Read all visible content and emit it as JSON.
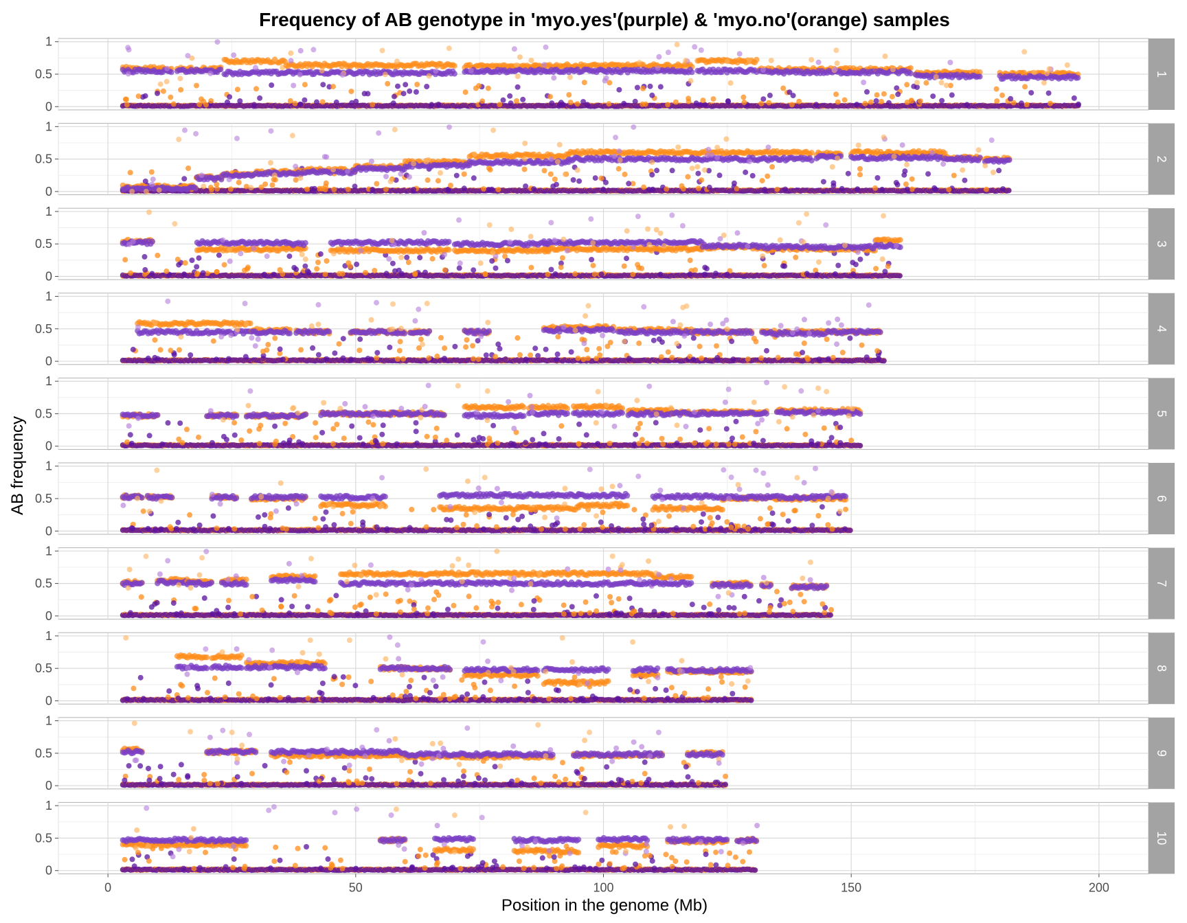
{
  "chart_data": {
    "type": "scatter",
    "title": "Frequency of AB genotype in 'myo.yes'(purple) & 'myo.no'(orange) samples",
    "xlabel": "Position in the genome (Mb)",
    "ylabel": "AB frequency",
    "xlim": [
      -10,
      210
    ],
    "ylim": [
      -0.05,
      1.05
    ],
    "x_ticks": [
      0,
      50,
      100,
      150,
      200
    ],
    "x_tick_labels": [
      "0",
      "50",
      "100",
      "150",
      "200"
    ],
    "y_ticks": [
      0,
      0.5,
      1
    ],
    "y_tick_labels": [
      "0",
      "0.5",
      "1"
    ],
    "grid": true,
    "facet_by": "chromosome",
    "series": [
      {
        "color": "#7B3FC4",
        "description": "myo.yes (purple)"
      },
      {
        "color": "#FF8C1A",
        "description": "myo.no (orange)"
      }
    ],
    "panels": [
      {
        "label": "1",
        "x_start": 3,
        "x_end": 196,
        "segments": [
          {
            "x0": 3,
            "x1": 13,
            "purple": 0.55,
            "orange": 0.59
          },
          {
            "x0": 14,
            "x1": 23,
            "purple": 0.55,
            "orange": 0.58
          },
          {
            "x0": 23.5,
            "x1": 36,
            "purple": 0.52,
            "orange": 0.7
          },
          {
            "x0": 36,
            "x1": 70,
            "purple": 0.52,
            "orange": 0.64
          },
          {
            "x0": 72,
            "x1": 86,
            "purple": 0.55,
            "orange": 0.62
          },
          {
            "x0": 86,
            "x1": 118,
            "purple": 0.55,
            "orange": 0.63
          },
          {
            "x0": 119,
            "x1": 131,
            "purple": 0.55,
            "orange": 0.7
          },
          {
            "x0": 131.5,
            "x1": 155,
            "purple": 0.53,
            "orange": 0.57
          },
          {
            "x0": 155,
            "x1": 162,
            "purple": 0.53,
            "orange": 0.57
          },
          {
            "x0": 163,
            "x1": 176,
            "purple": 0.47,
            "orange": 0.52
          },
          {
            "x0": 180,
            "x1": 196,
            "purple": 0.45,
            "orange": 0.5
          }
        ]
      },
      {
        "label": "2",
        "x_start": 3,
        "x_end": 182,
        "segments": [
          {
            "x0": 3,
            "x1": 18,
            "purple": 0.05,
            "orange": 0.07
          },
          {
            "x0": 18,
            "x1": 23,
            "purple": 0.2,
            "orange": 0.22
          },
          {
            "x0": 23,
            "x1": 30,
            "purple": 0.25,
            "orange": 0.27
          },
          {
            "x0": 30,
            "x1": 40,
            "purple": 0.28,
            "orange": 0.3
          },
          {
            "x0": 40,
            "x1": 50,
            "purple": 0.3,
            "orange": 0.33
          },
          {
            "x0": 50,
            "x1": 60,
            "purple": 0.35,
            "orange": 0.38
          },
          {
            "x0": 60,
            "x1": 73,
            "purple": 0.4,
            "orange": 0.45
          },
          {
            "x0": 73,
            "x1": 93,
            "purple": 0.45,
            "orange": 0.55
          },
          {
            "x0": 93,
            "x1": 142,
            "purple": 0.5,
            "orange": 0.6
          },
          {
            "x0": 143,
            "x1": 148,
            "purple": 0.53,
            "orange": 0.58
          },
          {
            "x0": 150,
            "x1": 169,
            "purple": 0.52,
            "orange": 0.6
          },
          {
            "x0": 169,
            "x1": 176,
            "purple": 0.5,
            "orange": 0.52
          },
          {
            "x0": 177,
            "x1": 182,
            "purple": 0.48,
            "orange": 0.5
          }
        ]
      },
      {
        "label": "3",
        "x_start": 3,
        "x_end": 160,
        "segments": [
          {
            "x0": 3,
            "x1": 9,
            "purple": 0.52,
            "orange": 0.55
          },
          {
            "x0": 18,
            "x1": 36,
            "purple": 0.52,
            "orange": 0.42
          },
          {
            "x0": 36,
            "x1": 40,
            "purple": 0.5,
            "orange": 0.42
          },
          {
            "x0": 45,
            "x1": 69,
            "purple": 0.52,
            "orange": 0.4
          },
          {
            "x0": 70,
            "x1": 89,
            "purple": 0.5,
            "orange": 0.4
          },
          {
            "x0": 88,
            "x1": 120,
            "purple": 0.52,
            "orange": 0.42
          },
          {
            "x0": 120,
            "x1": 131,
            "purple": 0.47,
            "orange": 0.45
          },
          {
            "x0": 131,
            "x1": 155,
            "purple": 0.45,
            "orange": 0.42
          },
          {
            "x0": 155,
            "x1": 160,
            "purple": 0.47,
            "orange": 0.55
          }
        ]
      },
      {
        "label": "4",
        "x_start": 3,
        "x_end": 157,
        "segments": [
          {
            "x0": 6,
            "x1": 29,
            "purple": 0.45,
            "orange": 0.58
          },
          {
            "x0": 29,
            "x1": 37,
            "purple": 0.45,
            "orange": 0.48
          },
          {
            "x0": 38,
            "x1": 45,
            "purple": 0.45,
            "orange": 0.45
          },
          {
            "x0": 49,
            "x1": 60,
            "purple": 0.45,
            "orange": 0.45
          },
          {
            "x0": 61,
            "x1": 65,
            "purple": 0.45,
            "orange": 0.45
          },
          {
            "x0": 72,
            "x1": 77,
            "purple": 0.45,
            "orange": 0.45
          },
          {
            "x0": 88,
            "x1": 102,
            "purple": 0.48,
            "orange": 0.52
          },
          {
            "x0": 103,
            "x1": 118,
            "purple": 0.45,
            "orange": 0.48
          },
          {
            "x0": 118,
            "x1": 130,
            "purple": 0.45,
            "orange": 0.45
          },
          {
            "x0": 132,
            "x1": 145,
            "purple": 0.43,
            "orange": 0.45
          },
          {
            "x0": 145,
            "x1": 156,
            "purple": 0.45,
            "orange": 0.45
          }
        ]
      },
      {
        "label": "5",
        "x_start": 3,
        "x_end": 152,
        "segments": [
          {
            "x0": 3,
            "x1": 10,
            "purple": 0.47,
            "orange": 0.47
          },
          {
            "x0": 20,
            "x1": 26,
            "purple": 0.47,
            "orange": 0.47
          },
          {
            "x0": 28,
            "x1": 40,
            "purple": 0.47,
            "orange": 0.47
          },
          {
            "x0": 43,
            "x1": 68,
            "purple": 0.5,
            "orange": 0.5
          },
          {
            "x0": 72,
            "x1": 84,
            "purple": 0.47,
            "orange": 0.6
          },
          {
            "x0": 85,
            "x1": 93,
            "purple": 0.5,
            "orange": 0.6
          },
          {
            "x0": 94,
            "x1": 104,
            "purple": 0.5,
            "orange": 0.6
          },
          {
            "x0": 105,
            "x1": 114,
            "purple": 0.5,
            "orange": 0.55
          },
          {
            "x0": 114,
            "x1": 133,
            "purple": 0.5,
            "orange": 0.52
          },
          {
            "x0": 135,
            "x1": 152,
            "purple": 0.52,
            "orange": 0.55
          }
        ]
      },
      {
        "label": "6",
        "x_start": 3,
        "x_end": 150,
        "segments": [
          {
            "x0": 3,
            "x1": 7,
            "purple": 0.53,
            "orange": 0.53
          },
          {
            "x0": 8,
            "x1": 13,
            "purple": 0.52,
            "orange": 0.52
          },
          {
            "x0": 21,
            "x1": 26,
            "purple": 0.52,
            "orange": 0.52
          },
          {
            "x0": 29,
            "x1": 40,
            "purple": 0.52,
            "orange": 0.5
          },
          {
            "x0": 43,
            "x1": 56,
            "purple": 0.52,
            "orange": 0.4
          },
          {
            "x0": 67,
            "x1": 95,
            "purple": 0.55,
            "orange": 0.35
          },
          {
            "x0": 95,
            "x1": 105,
            "purple": 0.55,
            "orange": 0.4
          },
          {
            "x0": 110,
            "x1": 124,
            "purple": 0.53,
            "orange": 0.35
          },
          {
            "x0": 124,
            "x1": 149,
            "purple": 0.52,
            "orange": 0.5
          }
        ]
      },
      {
        "label": "7",
        "x_start": 3,
        "x_end": 146,
        "segments": [
          {
            "x0": 3,
            "x1": 7,
            "purple": 0.5,
            "orange": 0.52
          },
          {
            "x0": 10,
            "x1": 16,
            "purple": 0.52,
            "orange": 0.55
          },
          {
            "x0": 16,
            "x1": 21,
            "purple": 0.5,
            "orange": 0.52
          },
          {
            "x0": 23,
            "x1": 28,
            "purple": 0.5,
            "orange": 0.55
          },
          {
            "x0": 33,
            "x1": 42,
            "purple": 0.55,
            "orange": 0.6
          },
          {
            "x0": 47,
            "x1": 110,
            "purple": 0.5,
            "orange": 0.65
          },
          {
            "x0": 110,
            "x1": 118,
            "purple": 0.5,
            "orange": 0.6
          },
          {
            "x0": 122,
            "x1": 130,
            "purple": 0.47,
            "orange": 0.5
          },
          {
            "x0": 132,
            "x1": 134,
            "purple": 0.47,
            "orange": 0.47
          },
          {
            "x0": 138,
            "x1": 145,
            "purple": 0.45,
            "orange": 0.45
          }
        ]
      },
      {
        "label": "8",
        "x_start": 3,
        "x_end": 130,
        "segments": [
          {
            "x0": 14,
            "x1": 20,
            "purple": 0.52,
            "orange": 0.68
          },
          {
            "x0": 21,
            "x1": 27,
            "purple": 0.52,
            "orange": 0.68
          },
          {
            "x0": 28,
            "x1": 44,
            "purple": 0.52,
            "orange": 0.58
          },
          {
            "x0": 55,
            "x1": 69,
            "purple": 0.5,
            "orange": 0.5
          },
          {
            "x0": 72,
            "x1": 87,
            "purple": 0.48,
            "orange": 0.4
          },
          {
            "x0": 88,
            "x1": 101,
            "purple": 0.48,
            "orange": 0.28
          },
          {
            "x0": 106,
            "x1": 111,
            "purple": 0.48,
            "orange": 0.4
          },
          {
            "x0": 113,
            "x1": 130,
            "purple": 0.47,
            "orange": 0.45
          }
        ]
      },
      {
        "label": "9",
        "x_start": 3,
        "x_end": 125,
        "segments": [
          {
            "x0": 3,
            "x1": 7,
            "purple": 0.52,
            "orange": 0.55
          },
          {
            "x0": 20,
            "x1": 30,
            "purple": 0.52,
            "orange": 0.52
          },
          {
            "x0": 33,
            "x1": 60,
            "purple": 0.52,
            "orange": 0.47
          },
          {
            "x0": 60,
            "x1": 90,
            "purple": 0.48,
            "orange": 0.45
          },
          {
            "x0": 94,
            "x1": 112,
            "purple": 0.48,
            "orange": 0.47
          },
          {
            "x0": 117,
            "x1": 124,
            "purple": 0.48,
            "orange": 0.5
          }
        ]
      },
      {
        "label": "10",
        "x_start": 3,
        "x_end": 131,
        "segments": [
          {
            "x0": 3,
            "x1": 28,
            "purple": 0.47,
            "orange": 0.4
          },
          {
            "x0": 55,
            "x1": 60,
            "purple": 0.47,
            "orange": 0.47
          },
          {
            "x0": 66,
            "x1": 74,
            "purple": 0.48,
            "orange": 0.32
          },
          {
            "x0": 82,
            "x1": 95,
            "purple": 0.47,
            "orange": 0.3
          },
          {
            "x0": 99,
            "x1": 109,
            "purple": 0.48,
            "orange": 0.38
          },
          {
            "x0": 113,
            "x1": 125,
            "purple": 0.47,
            "orange": 0.45
          },
          {
            "x0": 127,
            "x1": 131,
            "purple": 0.47,
            "orange": 0.47
          }
        ]
      }
    ]
  }
}
